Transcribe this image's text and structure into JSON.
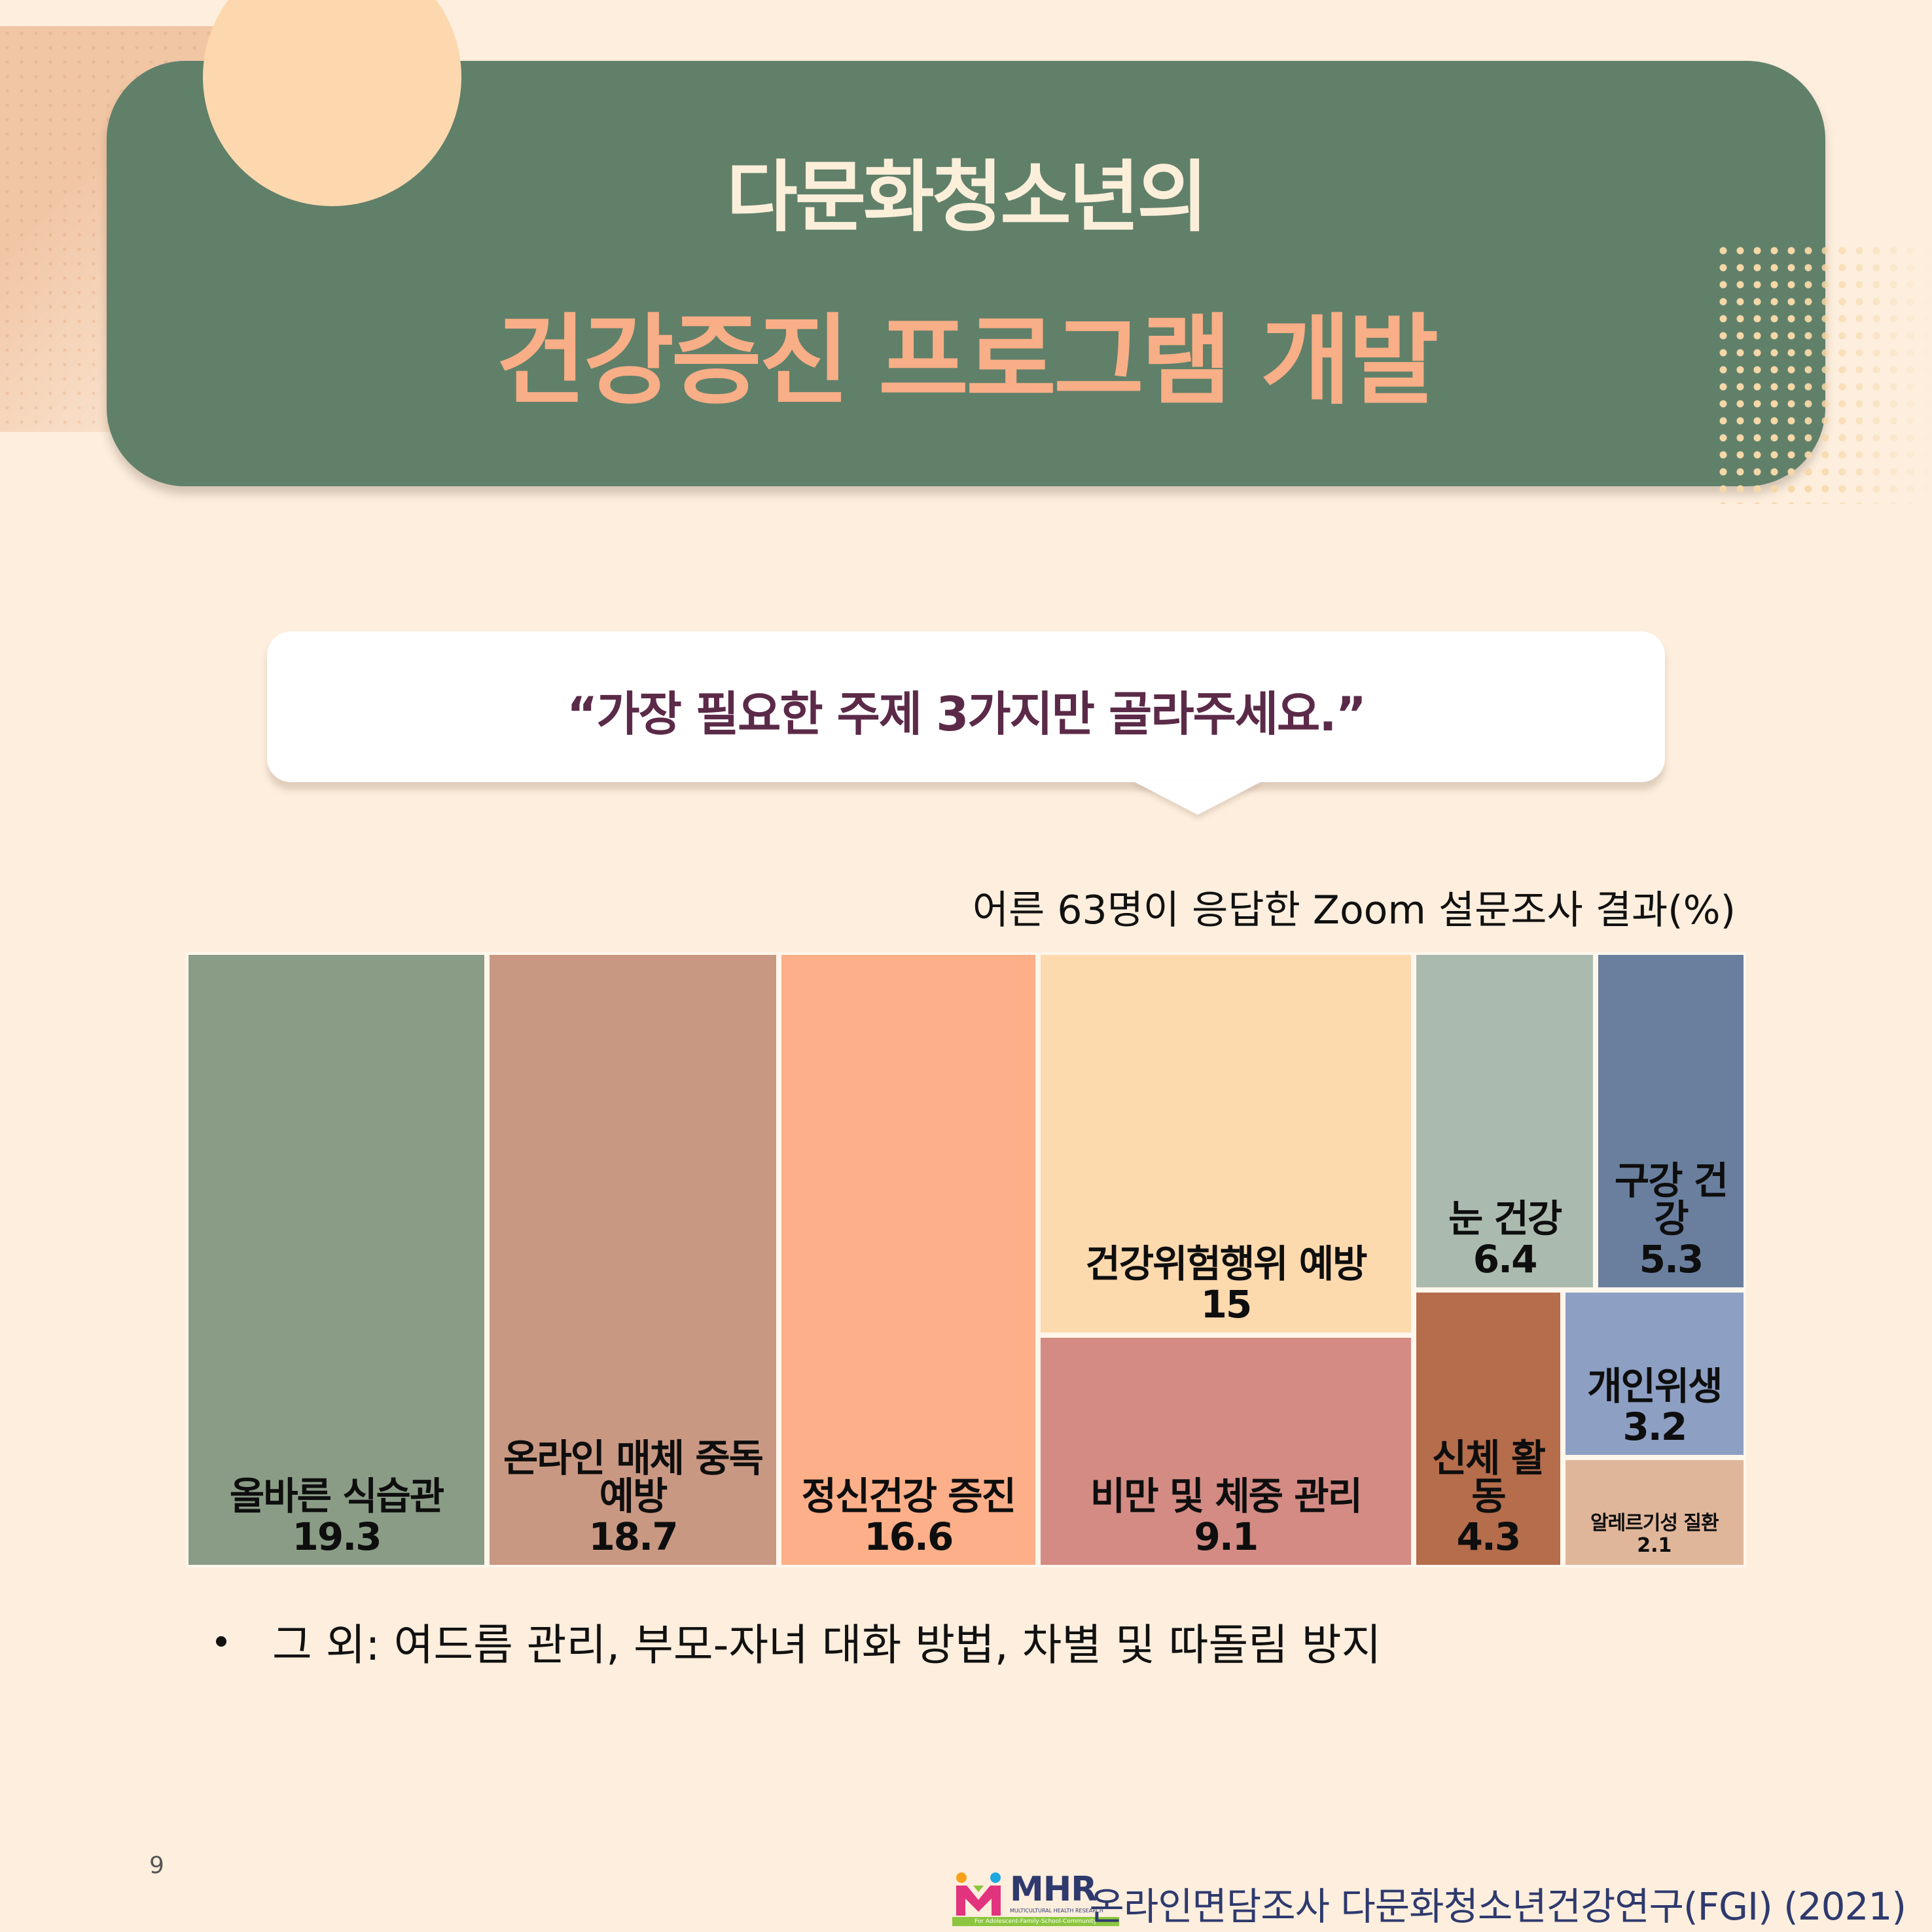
{
  "header": {
    "title_line1": "다문화청소년의",
    "title_line2": "건강증진 프로그램 개발"
  },
  "question": {
    "text": "“가장 필요한 주제 3가지만 골라주세요.”"
  },
  "chart_data": {
    "type": "treemap",
    "title": "어른 63명이 응답한 Zoom 설문조사 결과(%)",
    "unit": "%",
    "items": [
      {
        "label": "올바른 식습관",
        "value": 19.3,
        "color": "#8A9C86"
      },
      {
        "label": "온라인 매체 중독 예방",
        "value": 18.7,
        "color": "#C99882"
      },
      {
        "label": "정신건강 증진",
        "value": 16.6,
        "color": "#FCAF88"
      },
      {
        "label": "건강위험행위 예방",
        "value": 15,
        "color": "#FDD9AE"
      },
      {
        "label": "비만 및 체중 관리",
        "value": 9.1,
        "color": "#D38B84"
      },
      {
        "label": "눈 건강",
        "value": 6.4,
        "color": "#ABBAAF"
      },
      {
        "label": "구강 건강",
        "value": 5.3,
        "color": "#6A7F9E"
      },
      {
        "label": "신체 활동",
        "value": 4.3,
        "color": "#B56D4C"
      },
      {
        "label": "개인위생",
        "value": 3.2,
        "color": "#8D9FC3"
      },
      {
        "label": "알레르기성 질환",
        "value": 2.1,
        "color": "#E0B69A"
      }
    ]
  },
  "note": {
    "text": "그 외: 여드름 관리, 부모-자녀 대화 방법, 차별 및 따돌림 방지"
  },
  "footer": {
    "page_number": "9",
    "logo_text": "MHR",
    "logo_subtext": "MULTICULTURAL HEALTH RESEARCH",
    "logo_tagline": "For Adolescent-Family-School-Community",
    "source": "온라인면담조사 다문화청소년건강연구(FGI) (2021)"
  }
}
